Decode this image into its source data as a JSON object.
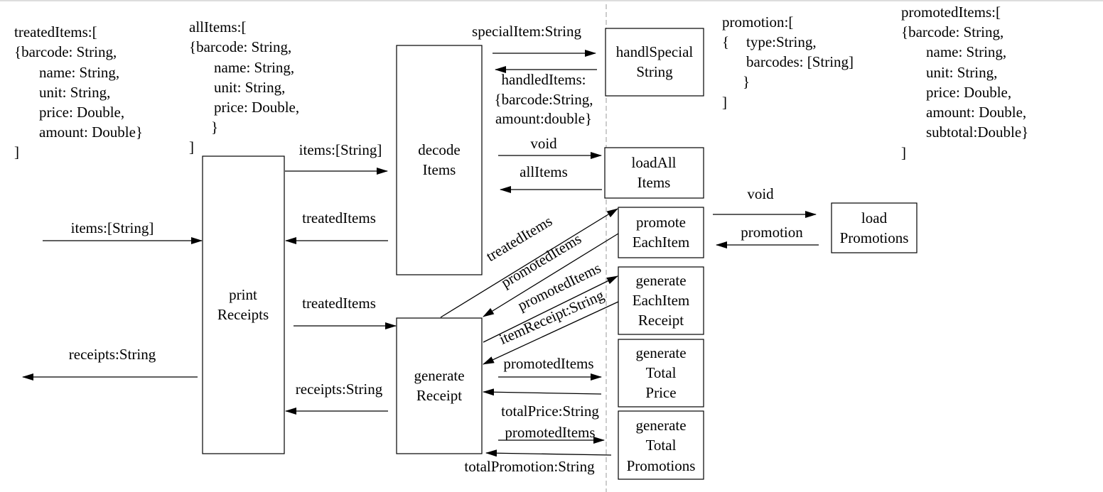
{
  "boxes": {
    "print_receipts": [
      "print",
      "Receipts"
    ],
    "decode_items": [
      "decode",
      "Items"
    ],
    "generate_receipt": [
      "generate",
      "Receipt"
    ],
    "handle_special_string": [
      "handlSpecial",
      "String"
    ],
    "load_all_items": [
      "loadAll",
      "Items"
    ],
    "promote_each_item": [
      "promote",
      "EachItem"
    ],
    "load_promotions": [
      "load",
      "Promotions"
    ],
    "generate_each_item_receipt": [
      "generate",
      "EachItem",
      "Receipt"
    ],
    "generate_total_price": [
      "generate",
      "Total",
      "Price"
    ],
    "generate_total_promotions": [
      "generate",
      "Total",
      "Promotions"
    ]
  },
  "labels": {
    "input_items": "items:[String]",
    "output_receipts": "receipts:String",
    "to_decode_items": "items:[String]",
    "from_decode_treated": "treatedItems",
    "to_generate_treated": "treatedItems",
    "from_generate_receipts": "receipts:String",
    "special_item": "specialItem:String",
    "handled_items": [
      "handledItems:",
      "{barcode:String,",
      "amount:double}"
    ],
    "void_load_all": "void",
    "all_items_return": "allItems",
    "void_load_promotions": "void",
    "promotion_return": "promotion",
    "diag_treated_items": "treatedItems",
    "diag_promoted_items_1": "promotedItems",
    "diag_promoted_items_2": "promotedItems",
    "diag_item_receipt": "itemReceipt:String",
    "promoted_items_price": "promotedItems",
    "total_price_return": "totalPrice:String",
    "promoted_items_promotions": "promotedItems",
    "total_promotion_return": "totalPromotion:String"
  },
  "notes": {
    "treated_items": [
      "treatedItems:[",
      "{barcode: String,",
      "name: String,",
      "unit: String,",
      "price: Double,",
      "amount: Double}",
      "]"
    ],
    "all_items": [
      "allItems:[",
      "{barcode: String,",
      "name: String,",
      "unit: String,",
      "price: Double,",
      "}",
      "]"
    ],
    "promotion": [
      "promotion:[",
      "{",
      "type:String,",
      "barcodes: [String]",
      "}",
      "]"
    ],
    "promoted_items": [
      "promotedItems:[",
      "{barcode: String,",
      "name: String,",
      "unit: String,",
      "price: Double,",
      "amount: Double,",
      "subtotal:Double}",
      "]"
    ]
  }
}
